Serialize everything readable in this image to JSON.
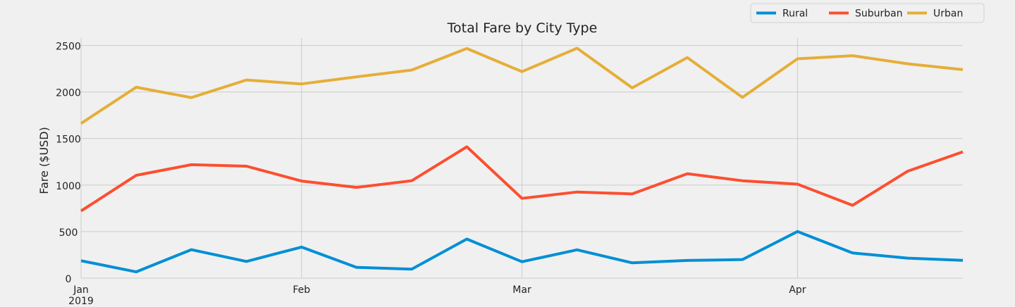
{
  "chart_data": {
    "type": "line",
    "title": "Total Fare by City Type",
    "xlabel": "",
    "ylabel": "Fare ($USD)",
    "x": [
      "2019-01-06",
      "2019-01-13",
      "2019-01-20",
      "2019-01-27",
      "2019-02-03",
      "2019-02-10",
      "2019-02-17",
      "2019-02-24",
      "2019-03-03",
      "2019-03-10",
      "2019-03-17",
      "2019-03-24",
      "2019-03-31",
      "2019-04-07",
      "2019-04-14",
      "2019-04-21",
      "2019-04-28"
    ],
    "xlim": [
      "2019-01-06",
      "2019-04-28"
    ],
    "x_ticks": [
      {
        "date": "2019-01-06",
        "label": "Jan",
        "sublabel": "2019"
      },
      {
        "date": "2019-02-03",
        "label": "Feb",
        "sublabel": ""
      },
      {
        "date": "2019-03-03",
        "label": "Mar",
        "sublabel": ""
      },
      {
        "date": "2019-04-07",
        "label": "Apr",
        "sublabel": ""
      }
    ],
    "ylim": [
      0,
      2580
    ],
    "y_ticks": [
      0,
      500,
      1000,
      1500,
      2000,
      2500
    ],
    "grid": true,
    "legend_position": "top-right, above plot, 3 columns",
    "series": [
      {
        "name": "Rural",
        "color": "#008fd5",
        "values": [
          187,
          67,
          306,
          179,
          334,
          116,
          97,
          420,
          176,
          304,
          164,
          190,
          200,
          501,
          270,
          215,
          191
        ]
      },
      {
        "name": "Suburban",
        "color": "#fc4f30",
        "values": [
          722,
          1105,
          1219,
          1203,
          1043,
          975,
          1046,
          1411,
          857,
          925,
          905,
          1122,
          1046,
          1010,
          782,
          1149,
          1357
        ]
      },
      {
        "name": "Urban",
        "color": "#e5ae38",
        "values": [
          1662,
          2051,
          1940,
          2129,
          2087,
          2163,
          2236,
          2467,
          2219,
          2470,
          2045,
          2370,
          1942,
          2357,
          2390,
          2303,
          2240
        ]
      }
    ]
  }
}
